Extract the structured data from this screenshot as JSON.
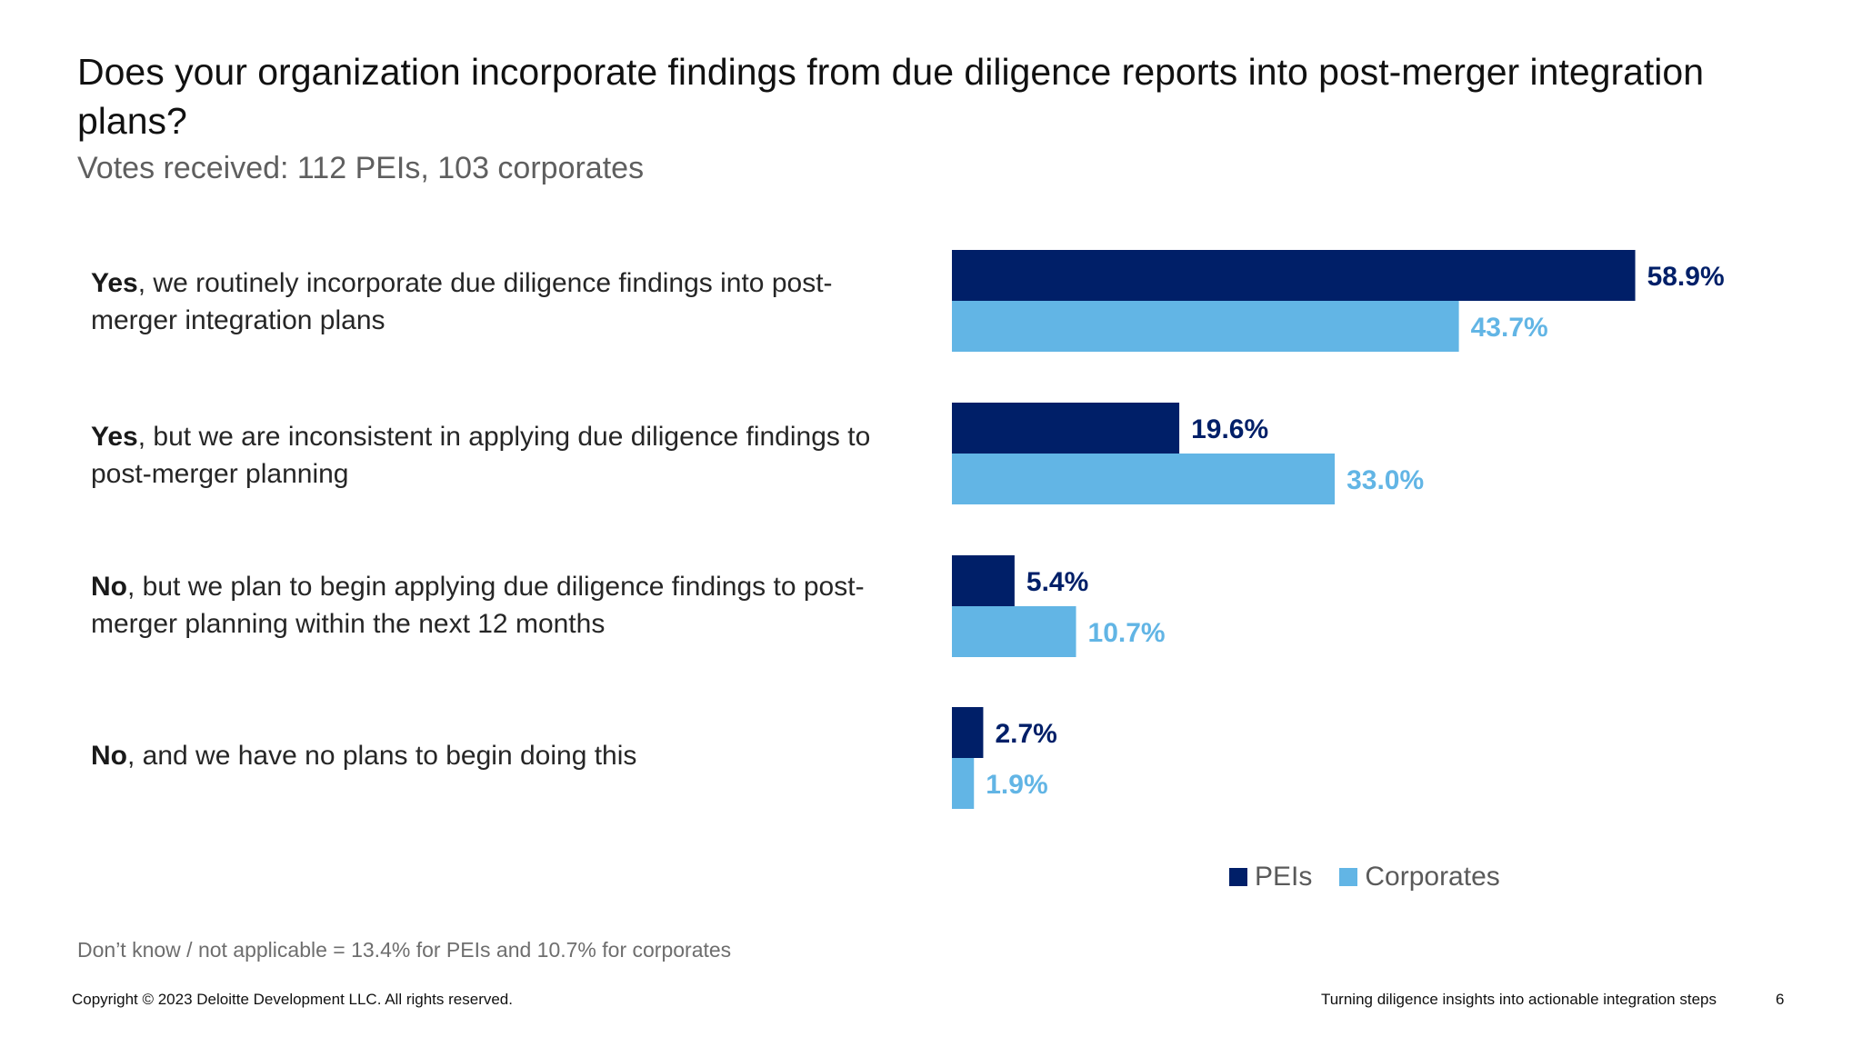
{
  "title": "Does your organization incorporate findings from due diligence reports into post-merger integration plans?",
  "subtitle": "Votes received: 112 PEIs, 103 corporates",
  "colors": {
    "peis": "#001f68",
    "corporates": "#62b5e5"
  },
  "categories": [
    {
      "bold": "Yes",
      "rest": ", we routinely incorporate due diligence findings into post-merger integration plans"
    },
    {
      "bold": "Yes",
      "rest": ", but we are inconsistent in applying due diligence findings to post-merger planning"
    },
    {
      "bold": "No",
      "rest": ", but we plan to begin applying due diligence findings to post-merger planning within the next 12 months"
    },
    {
      "bold": "No",
      "rest": ", and we have no plans to begin doing this"
    }
  ],
  "chart_data": {
    "type": "bar",
    "orientation": "horizontal",
    "categories": [
      "Yes, we routinely incorporate due diligence findings into post-merger integration plans",
      "Yes, but we are inconsistent in applying due diligence findings to post-merger planning",
      "No, but we plan to begin applying due diligence findings to post-merger planning within the next 12 months",
      "No, and we have no plans to begin doing this"
    ],
    "series": [
      {
        "name": "PEIs",
        "values": [
          58.9,
          19.6,
          5.4,
          2.7
        ],
        "labels": [
          "58.9%",
          "19.6%",
          "5.4%",
          "2.7%"
        ]
      },
      {
        "name": "Corporates",
        "values": [
          43.7,
          33.0,
          10.7,
          1.9
        ],
        "labels": [
          "43.7%",
          "33.0%",
          "10.7%",
          "1.9%"
        ]
      }
    ],
    "xlim": [
      0,
      100
    ],
    "grid": false,
    "axis_visible": false,
    "legend_position": "bottom"
  },
  "legend": {
    "peis_label": "PEIs",
    "corporates_label": "Corporates"
  },
  "footnote": "Don’t know / not applicable = 13.4% for PEIs and 10.7% for corporates",
  "footer": {
    "copyright": "Copyright © 2023 Deloitte Development LLC. All rights reserved.",
    "title": "Turning diligence insights into actionable integration steps",
    "page_number": "6"
  }
}
